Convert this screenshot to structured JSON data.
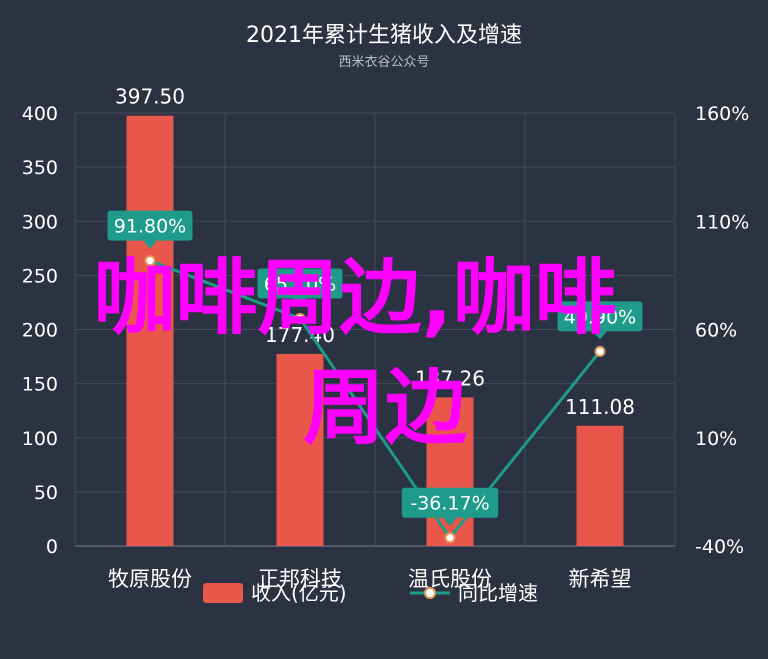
{
  "chart_data": {
    "type": "bar",
    "title": "2021年累计生猪收入及增速",
    "subtitle": "西米衣谷公众号",
    "categories": [
      "牧原股份",
      "正邦科技",
      "温氏股份",
      "新希望"
    ],
    "series": [
      {
        "name": "收入(亿元)",
        "type": "bar",
        "axis": "left",
        "color": "#e8574a",
        "values": [
          397.5,
          177.4,
          137.26,
          111.08
        ],
        "labels": [
          "397.50",
          "177.40",
          "137.26",
          "111.08"
        ]
      },
      {
        "name": "同比增速",
        "type": "line",
        "axis": "right",
        "color": "#1e9b8a",
        "values": [
          91.8,
          65.1,
          -36.17,
          49.9
        ],
        "labels": [
          "91.80%",
          "65.10%",
          "-36.17%",
          "49.90%"
        ]
      }
    ],
    "y_left": {
      "min": 0,
      "max": 400,
      "ticks": [
        "0",
        "50",
        "100",
        "150",
        "200",
        "250",
        "300",
        "350",
        "400"
      ]
    },
    "y_right": {
      "min": -40,
      "max": 160,
      "ticks": [
        "-40%",
        "10%",
        "60%",
        "110%",
        "160%"
      ]
    },
    "grid": true,
    "legend_position": "bottom"
  },
  "overlay_text": {
    "line1": "咖啡周边,咖啡",
    "line2": "周边"
  }
}
